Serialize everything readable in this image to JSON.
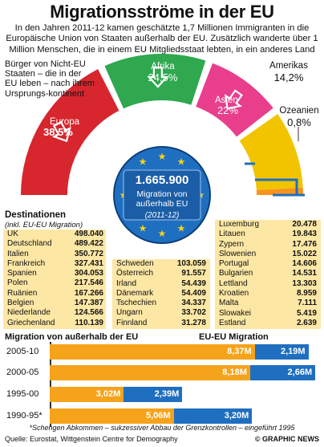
{
  "title": "Migrationsströme in der EU",
  "intro": "In den Jahren 2011-12 kamen geschätzte 1,7 Millionen Immigranten in die Europäische Union von Staaten außerhalb der EU. Zusätzlich wanderte über 1 Million Menschen, die in einem EU Mitgliedsstaat lebten, in ein anderes Land aus",
  "non_eu_label": "Bürger von Nicht-EU Staaten – die in der EU leben – nach ihrem Ursprungs-kontinent",
  "colors": {
    "europa": "#d7262e",
    "afrika": "#2fa84f",
    "asien": "#e83e8c",
    "amerikas": "#f2c400",
    "ozeanien": "#f7941d",
    "eu_blue": "#1f6fc0",
    "table_yellow": "#fde7a5",
    "bar_orange": "#f5a31a",
    "bar_blue": "#1f6fc0"
  },
  "continents": [
    {
      "name": "Europa",
      "share": "38,5%"
    },
    {
      "name": "Afrika",
      "share": "24,5%"
    },
    {
      "name": "Asien",
      "share": "22%"
    },
    {
      "name": "Amerikas",
      "share": "14,2%"
    },
    {
      "name": "Ozeanien",
      "share": "0,8%"
    }
  ],
  "center": {
    "number": "1.665.900",
    "label": "Migration von außerhalb EU",
    "years": "(2011-12)"
  },
  "destinations_title": "Destinationen",
  "destinations_sub": "(inkl. EU-EU Migration)",
  "col1": [
    {
      "country": "UK",
      "value": "498.040"
    },
    {
      "country": "Deutschland",
      "value": "489.422"
    },
    {
      "country": "Italien",
      "value": "350.772"
    },
    {
      "country": "Frankreich",
      "value": "327.431"
    },
    {
      "country": "Spanien",
      "value": "304.053"
    },
    {
      "country": "Polen",
      "value": "217.546"
    },
    {
      "country": "Ruänien",
      "value": "167.266"
    },
    {
      "country": "Belgien",
      "value": "147.387"
    },
    {
      "country": "Niederlande",
      "value": "124.566"
    },
    {
      "country": "Griechenland",
      "value": "110.139"
    }
  ],
  "col2": [
    {
      "country": "Schweden",
      "value": "103.059"
    },
    {
      "country": "Österreich",
      "value": "91.557"
    },
    {
      "country": "Irland",
      "value": "54.439"
    },
    {
      "country": "Dänemark",
      "value": "54.409"
    },
    {
      "country": "Tschechien",
      "value": "34.337"
    },
    {
      "country": "Ungarn",
      "value": "33.702"
    },
    {
      "country": "Finnland",
      "value": "31.278"
    }
  ],
  "col3": [
    {
      "country": "Luxemburg",
      "value": "20.478"
    },
    {
      "country": "Litauen",
      "value": "19.843"
    },
    {
      "country": "Zypern",
      "value": "17.476"
    },
    {
      "country": "Slowenien",
      "value": "15.022"
    },
    {
      "country": "Portugal",
      "value": "14.606"
    },
    {
      "country": "Bulgarien",
      "value": "14.531"
    },
    {
      "country": "Lettland",
      "value": "13.303"
    },
    {
      "country": "Kroatien",
      "value": "8.959"
    },
    {
      "country": "Malta",
      "value": "7.111"
    },
    {
      "country": "Slowakei",
      "value": "5.419"
    },
    {
      "country": "Estland",
      "value": "2.639"
    }
  ],
  "section_left": "Migration von außerhalb der EU",
  "section_right": "EU-EU Migration",
  "chart_data": {
    "type": "bar",
    "orientation": "horizontal",
    "stacked": true,
    "categories": [
      "2005-10",
      "2000-05",
      "1995-00",
      "1990-95*"
    ],
    "series": [
      {
        "name": "Migration von außerhalb der EU",
        "values": [
          8.37,
          8.18,
          3.02,
          5.06
        ],
        "labels": [
          "8,37M",
          "8,18M",
          "3,02M",
          "5,06M"
        ],
        "color": "#f5a31a"
      },
      {
        "name": "EU-EU Migration",
        "values": [
          2.19,
          2.66,
          2.39,
          3.2
        ],
        "labels": [
          "2,19M",
          "2,66M",
          "2,39M",
          "3,20M"
        ],
        "color": "#1f6fc0"
      }
    ],
    "xlim": [
      0,
      11
    ]
  },
  "footnote": "*Schengen Abkommen – sukzessiver Abbau der Grenzkontrollen – eingeführt 1995",
  "source": "Quelle: Eurostat, Wittgenstein Centre for Demography",
  "credit": "© GRAPHIC NEWS"
}
